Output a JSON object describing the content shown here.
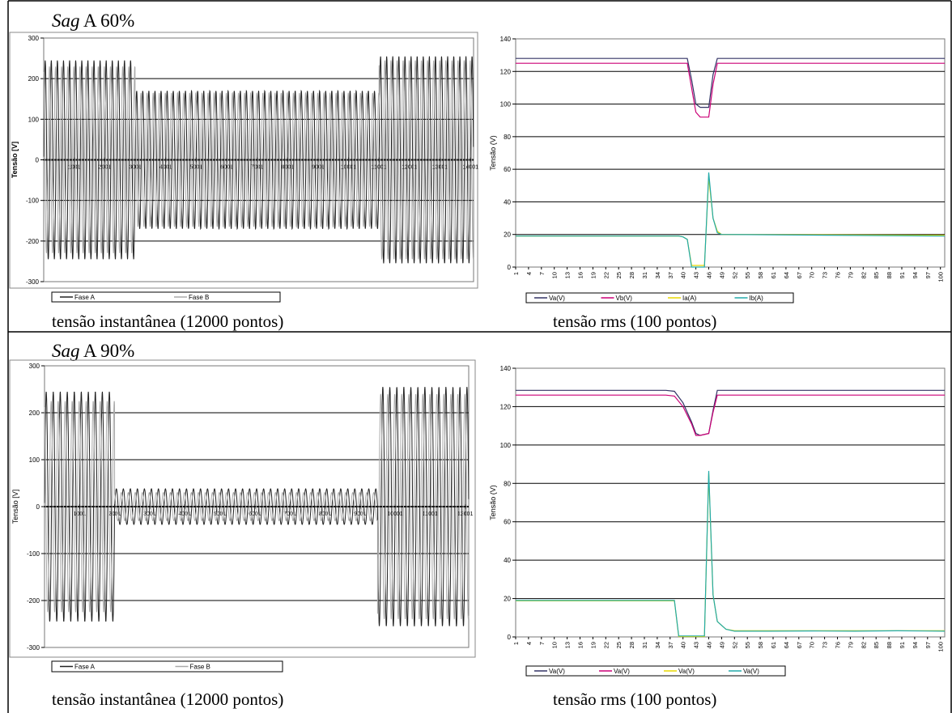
{
  "panels": [
    {
      "title_italic": "Sag",
      "title_rest": " A 60%",
      "left_caption": "tensão instantânea (12000 pontos)",
      "right_caption": "tensão rms (100 pontos)"
    },
    {
      "title_italic": "Sag",
      "title_rest": " A 90%",
      "left_caption": "tensão instantânea (12000 pontos)",
      "right_caption": "tensão rms (100 pontos)"
    }
  ],
  "chart_data": [
    {
      "type": "line",
      "ylabel": "Tensão [V]",
      "ylim": [
        -300,
        300
      ],
      "yticks": [
        300,
        200,
        100,
        0,
        -100,
        -200,
        -300
      ],
      "xticks": [
        "1001",
        "2001",
        "3001",
        "4001",
        "5001",
        "6001",
        "7001",
        "8001",
        "9001",
        "10001",
        "11001",
        "12001",
        "13001",
        "14001"
      ],
      "grid": "horizontal",
      "legend_position": "bottom",
      "series": [
        {
          "name": "Fase A",
          "color": "#222222",
          "segments": [
            {
              "from": 1,
              "to": 3000,
              "amplitude": 245
            },
            {
              "from": 3000,
              "to": 11000,
              "amplitude": 170
            },
            {
              "from": 11000,
              "to": 14100,
              "amplitude": 255
            }
          ]
        },
        {
          "name": "Fase B",
          "color": "#aaaaaa",
          "segments": [
            {
              "from": 1,
              "to": 3000,
              "amplitude": 230
            },
            {
              "from": 3000,
              "to": 11000,
              "amplitude": 165
            },
            {
              "from": 11000,
              "to": 14100,
              "amplitude": 245
            }
          ]
        }
      ]
    },
    {
      "type": "line",
      "ylabel": "Tensão (V)",
      "ylim": [
        0,
        140
      ],
      "yticks": [
        140,
        120,
        100,
        80,
        60,
        40,
        20,
        0
      ],
      "xticks": [
        "1",
        "4",
        "7",
        "10",
        "13",
        "16",
        "19",
        "22",
        "25",
        "28",
        "31",
        "34",
        "37",
        "40",
        "43",
        "46",
        "49",
        "52",
        "55",
        "58",
        "61",
        "64",
        "67",
        "70",
        "73",
        "76",
        "79",
        "82",
        "85",
        "88",
        "91",
        "94",
        "97",
        "100"
      ],
      "grid": "horizontal",
      "legend_position": "bottom",
      "series": [
        {
          "name": "Va(V)",
          "color": "#333366",
          "points": [
            [
              1,
              128
            ],
            [
              41,
              128
            ],
            [
              42,
              115
            ],
            [
              43,
              100
            ],
            [
              44,
              98
            ],
            [
              45,
              98
            ],
            [
              46,
              98
            ],
            [
              47,
              118
            ],
            [
              48,
              128
            ],
            [
              101,
              128
            ]
          ]
        },
        {
          "name": "Vb(V)",
          "color": "#cc0077",
          "points": [
            [
              1,
              125
            ],
            [
              41,
              125
            ],
            [
              42,
              110
            ],
            [
              43,
              95
            ],
            [
              44,
              92
            ],
            [
              45,
              92
            ],
            [
              46,
              92
            ],
            [
              47,
              112
            ],
            [
              48,
              125
            ],
            [
              101,
              125
            ]
          ]
        },
        {
          "name": "Ia(A)",
          "color": "#e8d800",
          "points": [
            [
              1,
              19
            ],
            [
              39,
              19
            ],
            [
              40,
              18.5
            ],
            [
              41,
              17
            ],
            [
              42,
              1
            ],
            [
              45,
              1
            ],
            [
              46,
              55
            ],
            [
              47,
              30
            ],
            [
              48,
              22
            ],
            [
              49,
              20
            ],
            [
              101,
              19.5
            ]
          ]
        },
        {
          "name": "Ib(A)",
          "color": "#22aaaa",
          "points": [
            [
              1,
              19
            ],
            [
              39,
              19
            ],
            [
              40,
              18.5
            ],
            [
              41,
              17
            ],
            [
              42,
              0
            ],
            [
              45,
              0
            ],
            [
              46,
              58
            ],
            [
              47,
              30
            ],
            [
              48,
              21
            ],
            [
              49,
              20
            ],
            [
              101,
              19
            ]
          ]
        }
      ]
    },
    {
      "type": "line",
      "ylabel": "Tensão [V]",
      "ylim": [
        -300,
        300
      ],
      "yticks": [
        300,
        200,
        100,
        0,
        -100,
        -200,
        -300
      ],
      "xticks": [
        "1001",
        "2001",
        "3001",
        "4001",
        "5001",
        "6001",
        "7001",
        "8001",
        "9001",
        "10001",
        "11001",
        "12001"
      ],
      "grid": "horizontal",
      "legend_position": "bottom",
      "series": [
        {
          "name": "Fase A",
          "color": "#222222",
          "segments": [
            {
              "from": 1,
              "to": 2000,
              "amplitude": 245
            },
            {
              "from": 2000,
              "to": 9500,
              "amplitude": 38
            },
            {
              "from": 9500,
              "to": 12100,
              "amplitude": 255
            }
          ]
        },
        {
          "name": "Fase B",
          "color": "#aaaaaa",
          "segments": [
            {
              "from": 1,
              "to": 2000,
              "amplitude": 225
            },
            {
              "from": 2000,
              "to": 9500,
              "amplitude": 30
            },
            {
              "from": 9500,
              "to": 12100,
              "amplitude": 240
            }
          ]
        }
      ]
    },
    {
      "type": "line",
      "ylabel": "Tensão (V)",
      "ylim": [
        0,
        140
      ],
      "yticks": [
        140,
        120,
        100,
        80,
        60,
        40,
        20,
        0
      ],
      "xticks": [
        "1",
        "4",
        "7",
        "10",
        "13",
        "16",
        "19",
        "22",
        "25",
        "28",
        "31",
        "34",
        "37",
        "40",
        "43",
        "46",
        "49",
        "52",
        "55",
        "58",
        "61",
        "64",
        "67",
        "70",
        "73",
        "76",
        "79",
        "82",
        "85",
        "88",
        "91",
        "94",
        "97",
        "100"
      ],
      "grid": "horizontal",
      "legend_position": "bottom",
      "series": [
        {
          "name": "Va(V)",
          "color": "#333366",
          "points": [
            [
              1,
              128.5
            ],
            [
              36,
              128.5
            ],
            [
              38,
              128
            ],
            [
              40,
              122
            ],
            [
              42,
              112
            ],
            [
              43,
              106
            ],
            [
              44,
              105
            ],
            [
              46,
              106
            ],
            [
              47,
              118
            ],
            [
              48,
              128.5
            ],
            [
              101,
              128.5
            ]
          ]
        },
        {
          "name": "Va(V)",
          "color": "#cc0077",
          "points": [
            [
              1,
              126
            ],
            [
              36,
              126
            ],
            [
              38,
              125.5
            ],
            [
              40,
              120
            ],
            [
              42,
              111
            ],
            [
              43,
              105
            ],
            [
              44,
              105
            ],
            [
              46,
              106
            ],
            [
              47,
              117
            ],
            [
              48,
              126
            ],
            [
              101,
              126
            ]
          ]
        },
        {
          "name": "Va(V)",
          "color": "#e8d800",
          "points": [
            [
              1,
              18.8
            ],
            [
              38,
              18.8
            ],
            [
              39,
              0.2
            ],
            [
              45,
              0.2
            ],
            [
              46,
              85
            ],
            [
              47,
              22
            ],
            [
              48,
              8
            ],
            [
              50,
              4
            ],
            [
              52,
              3.2
            ],
            [
              101,
              3.2
            ]
          ]
        },
        {
          "name": "Va(V)",
          "color": "#22aaaa",
          "points": [
            [
              1,
              19
            ],
            [
              38,
              19
            ],
            [
              39,
              0.5
            ],
            [
              45,
              0.5
            ],
            [
              46,
              86.5
            ],
            [
              47,
              22
            ],
            [
              48,
              8
            ],
            [
              50,
              4
            ],
            [
              52,
              3
            ],
            [
              60,
              3
            ],
            [
              70,
              3.1
            ],
            [
              80,
              3
            ],
            [
              90,
              3.2
            ],
            [
              101,
              3
            ]
          ]
        }
      ]
    }
  ]
}
